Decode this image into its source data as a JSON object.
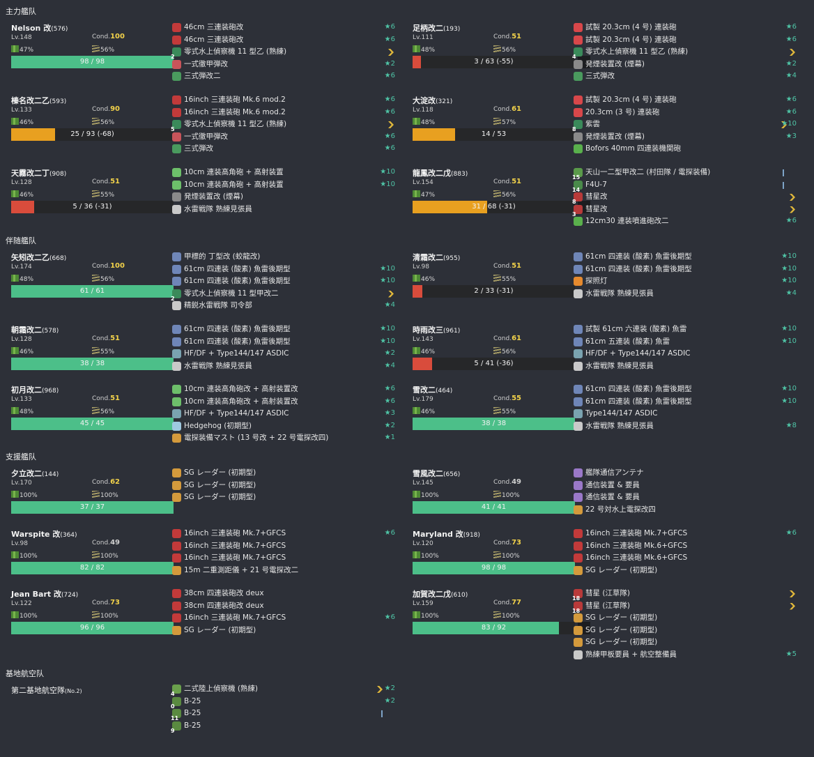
{
  "colors": {
    "hp_green": "#4cbf89",
    "hp_orange": "#e8a020",
    "hp_red": "#d94c3c",
    "star": "#4fc4a6",
    "cond_high": "#f2d24a"
  },
  "sections": [
    {
      "title": "主力艦队",
      "ships": [
        {
          "name": "Nelson 改",
          "id": "(576)",
          "lv": "Lv.148",
          "cond": "100",
          "cond_color": "#f2d24a",
          "fuel": "47%",
          "ammo": "56%",
          "hp": "98 / 98",
          "hp_frac": 1,
          "hp_color": "#4cbf89",
          "tail": false,
          "equips": [
            {
              "icon": "big-gun-icon",
              "name": "46cm 三連装砲改",
              "lv": "★6"
            },
            {
              "icon": "big-gun-icon",
              "name": "46cm 三連装砲改",
              "lv": "★6"
            },
            {
              "icon": "seaplane-icon",
              "cnt": "2",
              "name": "零式水上偵察機 11 型乙 (熟練)",
              "prof": "chevron"
            },
            {
              "icon": "ap-shell-icon",
              "name": "一式徹甲弾改",
              "lv": "★2"
            },
            {
              "icon": "aa-shell-icon",
              "name": "三式弾改二",
              "lv": "★6"
            }
          ]
        },
        {
          "name": "足柄改二",
          "id": "(193)",
          "lv": "Lv.111",
          "cond": "51",
          "cond_color": "#f2d24a",
          "fuel": "48%",
          "ammo": "56%",
          "hp": "3 / 63 (-55)",
          "hp_frac": 0.05,
          "hp_color": "#d94c3c",
          "tail": true,
          "equips": [
            {
              "icon": "mid-gun-icon",
              "name": "試製 20.3cm (4 号) 連装砲",
              "lv": "★6"
            },
            {
              "icon": "mid-gun-icon",
              "name": "試製 20.3cm (4 号) 連装砲",
              "lv": "★6"
            },
            {
              "icon": "seaplane-icon",
              "cnt": "4",
              "name": "零式水上偵察機 11 型乙 (熟練)",
              "prof": "chevron"
            },
            {
              "icon": "smoke-icon",
              "name": "発煙装置改 (煙幕)",
              "lv": "★2"
            },
            {
              "icon": "aa-shell-icon",
              "name": "三式弾改",
              "lv": "★4"
            }
          ]
        },
        {
          "name": "榛名改二乙",
          "id": "(593)",
          "lv": "Lv.133",
          "cond": "90",
          "cond_color": "#f2d24a",
          "fuel": "46%",
          "ammo": "56%",
          "hp": "25 / 93 (-68)",
          "hp_frac": 0.27,
          "hp_color": "#e8a020",
          "tail": false,
          "equips": [
            {
              "icon": "big-gun-icon",
              "name": "16inch 三連装砲 Mk.6 mod.2",
              "lv": "★6"
            },
            {
              "icon": "big-gun-icon",
              "name": "16inch 三連装砲 Mk.6 mod.2",
              "lv": "★6"
            },
            {
              "icon": "seaplane-icon",
              "cnt": "5",
              "name": "零式水上偵察機 11 型乙 (熟練)",
              "prof": "chevron"
            },
            {
              "icon": "ap-shell-icon",
              "name": "一式徹甲弾改",
              "lv": "★6"
            },
            {
              "icon": "aa-shell-icon",
              "name": "三式弾改",
              "lv": "★6"
            }
          ]
        },
        {
          "name": "大淀改",
          "id": "(321)",
          "lv": "Lv.118",
          "cond": "61",
          "cond_color": "#f2d24a",
          "fuel": "48%",
          "ammo": "57%",
          "hp": "14 / 53",
          "hp_frac": 0.26,
          "hp_color": "#e8a020",
          "tail": false,
          "equips": [
            {
              "icon": "mid-gun-icon",
              "name": "試製 20.3cm (4 号) 連装砲",
              "lv": "★6"
            },
            {
              "icon": "mid-gun-icon",
              "name": "20.3cm (3 号) 連装砲",
              "lv": "★6"
            },
            {
              "icon": "seaplane-icon",
              "cnt": "8",
              "name": "紫雲",
              "lv": "★10",
              "prof": "chevron-near"
            },
            {
              "icon": "smoke-icon",
              "name": "発煙装置改 (煙幕)",
              "lv": "★3"
            },
            {
              "icon": "aa-gun-icon",
              "name": "Bofors 40mm 四連装機関砲"
            }
          ]
        },
        {
          "name": "天霧改二丁",
          "id": "(908)",
          "lv": "Lv.128",
          "cond": "51",
          "cond_color": "#f2d24a",
          "fuel": "46%",
          "ammo": "55%",
          "hp": "5 / 36 (-31)",
          "hp_frac": 0.14,
          "hp_color": "#d94c3c",
          "tail": false,
          "equips": [
            {
              "icon": "small-gun-icon",
              "name": "10cm 連装高角砲 + 高射装置",
              "lv": "★10"
            },
            {
              "icon": "small-gun-icon",
              "name": "10cm 連装高角砲 + 高射装置",
              "lv": "★10"
            },
            {
              "icon": "smoke-icon",
              "name": "発煙装置改 (煙幕)"
            },
            {
              "icon": "lookout-icon",
              "name": "水雷戦隊 熟練見張員"
            }
          ]
        },
        {
          "name": "龍鳳改二戊",
          "id": "(883)",
          "lv": "Lv.154",
          "cond": "51",
          "cond_color": "#f2d24a",
          "fuel": "47%",
          "ammo": "56%",
          "hp": "31 / 68 (-31)",
          "hp_frac": 0.46,
          "hp_color": "#e8a020",
          "tail": true,
          "equips": [
            {
              "icon": "torpedo-bomber-icon",
              "cnt": "15",
              "name": "天山一二型甲改二 (村田隊 / 電探装備)",
              "prof": "bar"
            },
            {
              "icon": "fighter-icon",
              "cnt": "14",
              "name": "F4U-7",
              "prof": "bar"
            },
            {
              "icon": "dive-bomber-icon",
              "cnt": "8",
              "name": "彗星改",
              "prof": "chevron"
            },
            {
              "icon": "dive-bomber-icon",
              "cnt": "3",
              "name": "彗星改",
              "prof": "chevron"
            },
            {
              "icon": "rocket-icon",
              "name": "12cm30 連装噴進砲改二",
              "lv": "★6"
            }
          ]
        }
      ]
    },
    {
      "title": "伴随艦队",
      "ships": [
        {
          "name": "矢矧改二乙",
          "id": "(668)",
          "lv": "Lv.174",
          "cond": "100",
          "cond_color": "#f2d24a",
          "fuel": "48%",
          "ammo": "56%",
          "hp": "61 / 61",
          "hp_frac": 1,
          "hp_color": "#4cbf89",
          "tail": false,
          "equips": [
            {
              "icon": "torpedo-icon",
              "name": "甲標的 丁型改 (蛟龍改)"
            },
            {
              "icon": "torpedo-icon",
              "name": "61cm 四連装 (酸素) 魚雷後期型",
              "lv": "★10"
            },
            {
              "icon": "torpedo-icon",
              "name": "61cm 四連装 (酸素) 魚雷後期型",
              "lv": "★10"
            },
            {
              "icon": "seaplane-icon",
              "cnt": "2",
              "name": "零式水上偵察機 11 型甲改二",
              "prof": "chevron"
            },
            {
              "icon": "lookout-icon",
              "name": "精鋭水雷戦隊 司令部",
              "lv": "★4"
            }
          ]
        },
        {
          "name": "清霜改二",
          "id": "(955)",
          "lv": "Lv.98",
          "cond": "51",
          "cond_color": "#f2d24a",
          "fuel": "46%",
          "ammo": "55%",
          "hp": "2 / 33 (-31)",
          "hp_frac": 0.06,
          "hp_color": "#d94c3c",
          "tail": false,
          "equips": [
            {
              "icon": "torpedo-icon",
              "name": "61cm 四連装 (酸素) 魚雷後期型",
              "lv": "★10"
            },
            {
              "icon": "torpedo-icon",
              "name": "61cm 四連装 (酸素) 魚雷後期型",
              "lv": "★10"
            },
            {
              "icon": "searchlight-icon",
              "name": "探照灯",
              "lv": "★10"
            },
            {
              "icon": "lookout-icon",
              "name": "水雷戦隊 熟練見張員",
              "lv": "★4"
            }
          ]
        },
        {
          "name": "朝霜改二",
          "id": "(578)",
          "lv": "Lv.128",
          "cond": "51",
          "cond_color": "#f2d24a",
          "fuel": "46%",
          "ammo": "55%",
          "hp": "38 / 38",
          "hp_frac": 1,
          "hp_color": "#4cbf89",
          "tail": false,
          "equips": [
            {
              "icon": "torpedo-icon",
              "name": "61cm 四連装 (酸素) 魚雷後期型",
              "lv": "★10"
            },
            {
              "icon": "torpedo-icon",
              "name": "61cm 四連装 (酸素) 魚雷後期型",
              "lv": "★10"
            },
            {
              "icon": "sonar-icon",
              "name": "HF/DF + Type144/147 ASDIC",
              "lv": "★2"
            },
            {
              "icon": "lookout-icon",
              "name": "水雷戦隊 熟練見張員",
              "lv": "★4"
            }
          ]
        },
        {
          "name": "時雨改三",
          "id": "(961)",
          "lv": "Lv.143",
          "cond": "61",
          "cond_color": "#f2d24a",
          "fuel": "46%",
          "ammo": "56%",
          "hp": "5 / 41 (-36)",
          "hp_frac": 0.12,
          "hp_color": "#d94c3c",
          "tail": false,
          "equips": [
            {
              "icon": "torpedo-icon",
              "name": "試製 61cm 六連装 (酸素) 魚雷",
              "lv": "★10"
            },
            {
              "icon": "torpedo-icon",
              "name": "61cm 五連装 (酸素) 魚雷",
              "lv": "★10"
            },
            {
              "icon": "sonar-icon",
              "name": "HF/DF + Type144/147 ASDIC"
            },
            {
              "icon": "lookout-icon",
              "name": "水雷戦隊 熟練見張員"
            }
          ]
        },
        {
          "name": "初月改二",
          "id": "(968)",
          "lv": "Lv.133",
          "cond": "51",
          "cond_color": "#f2d24a",
          "fuel": "48%",
          "ammo": "56%",
          "hp": "45 / 45",
          "hp_frac": 1,
          "hp_color": "#4cbf89",
          "tail": false,
          "equips": [
            {
              "icon": "small-gun-icon",
              "name": "10cm 連装高角砲改 + 高射装置改",
              "lv": "★6"
            },
            {
              "icon": "small-gun-icon",
              "name": "10cm 連装高角砲改 + 高射装置改",
              "lv": "★6"
            },
            {
              "icon": "sonar-icon",
              "name": "HF/DF + Type144/147 ASDIC",
              "lv": "★3"
            },
            {
              "icon": "depth-charge-icon",
              "name": "Hedgehog (初期型)",
              "lv": "★2"
            },
            {
              "icon": "radar-icon",
              "name": "電探装備マスト (13 号改 + 22 号電探改四)",
              "lv": "★1"
            }
          ]
        },
        {
          "name": "雪改二",
          "id": "(464)",
          "lv": "Lv.179",
          "cond": "55",
          "cond_color": "#f2d24a",
          "fuel": "46%",
          "ammo": "55%",
          "hp": "38 / 38",
          "hp_frac": 1,
          "hp_color": "#4cbf89",
          "tail": false,
          "equips": [
            {
              "icon": "torpedo-icon",
              "name": "61cm 四連装 (酸素) 魚雷後期型",
              "lv": "★10"
            },
            {
              "icon": "torpedo-icon",
              "name": "61cm 四連装 (酸素) 魚雷後期型",
              "lv": "★10"
            },
            {
              "icon": "sonar-icon",
              "name": "Type144/147 ASDIC"
            },
            {
              "icon": "lookout-icon",
              "name": "水雷戦隊 熟練見張員",
              "lv": "★8"
            }
          ]
        }
      ]
    },
    {
      "title": "支援艦队",
      "ships": [
        {
          "name": "夕立改二",
          "id": "(144)",
          "lv": "Lv.170",
          "cond": "62",
          "cond_color": "#f2d24a",
          "fuel": "100%",
          "ammo": "100%",
          "hp": "37 / 37",
          "hp_frac": 1,
          "hp_color": "#4cbf89",
          "tail": false,
          "equips": [
            {
              "icon": "radar-icon",
              "name": "SG レーダー (初期型)"
            },
            {
              "icon": "radar-icon",
              "name": "SG レーダー (初期型)"
            },
            {
              "icon": "radar-icon",
              "name": "SG レーダー (初期型)"
            }
          ]
        },
        {
          "name": "雪風改二",
          "id": "(656)",
          "lv": "Lv.145",
          "cond": "49",
          "cond_color": "#cfcfcf",
          "fuel": "100%",
          "ammo": "100%",
          "hp": "41 / 41",
          "hp_frac": 1,
          "hp_color": "#4cbf89",
          "tail": false,
          "equips": [
            {
              "icon": "antenna-icon",
              "name": "艦隊通信アンテナ"
            },
            {
              "icon": "antenna-icon",
              "name": "通信装置 & 要員"
            },
            {
              "icon": "antenna-icon",
              "name": "通信装置 & 要員"
            },
            {
              "icon": "radar-icon",
              "name": "22 号対水上電探改四"
            }
          ]
        },
        {
          "name": "Warspite 改",
          "id": "(364)",
          "lv": "Lv.98",
          "cond": "49",
          "cond_color": "#cfcfcf",
          "fuel": "100%",
          "ammo": "100%",
          "hp": "82 / 82",
          "hp_frac": 1,
          "hp_color": "#4cbf89",
          "tail": false,
          "equips": [
            {
              "icon": "big-gun-icon",
              "name": "16inch 三連装砲 Mk.7+GFCS",
              "lv": "★6"
            },
            {
              "icon": "big-gun-icon",
              "name": "16inch 三連装砲 Mk.7+GFCS"
            },
            {
              "icon": "big-gun-icon",
              "name": "16inch 三連装砲 Mk.7+GFCS"
            },
            {
              "icon": "radar-icon",
              "name": "15m 二重測距儀 + 21 号電探改二"
            }
          ]
        },
        {
          "name": "Maryland 改",
          "id": "(918)",
          "lv": "Lv.120",
          "cond": "73",
          "cond_color": "#f2d24a",
          "fuel": "100%",
          "ammo": "100%",
          "hp": "98 / 98",
          "hp_frac": 1,
          "hp_color": "#4cbf89",
          "tail": false,
          "equips": [
            {
              "icon": "big-gun-icon",
              "name": "16inch 三連装砲 Mk.7+GFCS",
              "lv": "★6"
            },
            {
              "icon": "big-gun-icon",
              "name": "16inch 三連装砲 Mk.6+GFCS"
            },
            {
              "icon": "big-gun-icon",
              "name": "16inch 三連装砲 Mk.6+GFCS"
            },
            {
              "icon": "radar-icon",
              "name": "SG レーダー (初期型)"
            }
          ]
        },
        {
          "name": "Jean Bart 改",
          "id": "(724)",
          "lv": "Lv.122",
          "cond": "73",
          "cond_color": "#f2d24a",
          "fuel": "100%",
          "ammo": "100%",
          "hp": "96 / 96",
          "hp_frac": 1,
          "hp_color": "#4cbf89",
          "tail": false,
          "equips": [
            {
              "icon": "big-gun-icon",
              "name": "38cm 四連装砲改 deux"
            },
            {
              "icon": "big-gun-icon",
              "name": "38cm 四連装砲改 deux"
            },
            {
              "icon": "big-gun-icon",
              "name": "16inch 三連装砲 Mk.7+GFCS",
              "lv": "★6"
            },
            {
              "icon": "radar-icon",
              "name": "SG レーダー (初期型)"
            }
          ]
        },
        {
          "name": "加賀改二戊",
          "id": "(610)",
          "lv": "Lv.159",
          "cond": "77",
          "cond_color": "#f2d24a",
          "fuel": "100%",
          "ammo": "100%",
          "hp": "83 / 92",
          "hp_frac": 0.9,
          "hp_color": "#4cbf89",
          "tail": true,
          "equips": [
            {
              "icon": "dive-bomber-icon",
              "cnt": "18",
              "name": "彗星 (江草隊)",
              "prof": "chevron"
            },
            {
              "icon": "dive-bomber-icon",
              "cnt": "18",
              "name": "彗星 (江草隊)",
              "prof": "chevron"
            },
            {
              "icon": "radar-icon",
              "name": "SG レーダー (初期型)"
            },
            {
              "icon": "radar-icon",
              "name": "SG レーダー (初期型)"
            },
            {
              "icon": "radar-icon",
              "name": "SG レーダー (初期型)"
            },
            {
              "icon": "lookout-icon",
              "name": "熟練甲板要員 + 航空整備員",
              "lv": "★5"
            }
          ]
        }
      ]
    },
    {
      "title": "基地航空队",
      "ships": [
        {
          "name": "第二基地航空隊",
          "id": "(No.2)",
          "base": true,
          "equips": [
            {
              "icon": "land-recon-icon",
              "cnt": "4",
              "name": "二式陸上偵察機 (熟練)",
              "lv": "★2",
              "prof": "chevron-star"
            },
            {
              "icon": "land-bomber-icon",
              "cnt": "0",
              "name": "B-25",
              "lv": "★2"
            },
            {
              "icon": "land-bomber-icon",
              "cnt": "11",
              "name": "B-25",
              "prof": "bar"
            },
            {
              "icon": "land-bomber-icon",
              "cnt": "9",
              "name": "B-25"
            }
          ]
        }
      ]
    }
  ]
}
